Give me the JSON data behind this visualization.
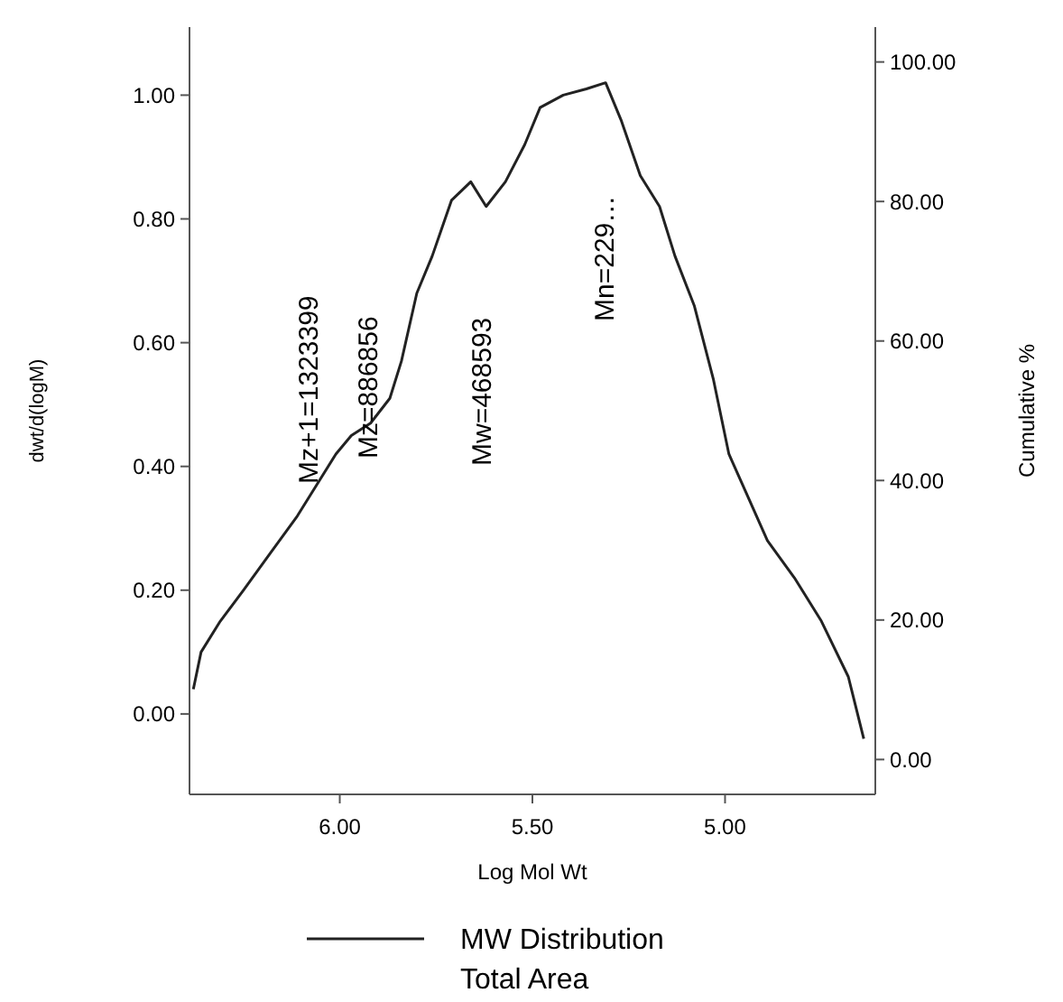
{
  "chart_data": {
    "type": "line",
    "xlabel": "Log Mol Wt",
    "ylabel": "dwt/d(logM)",
    "y2label": "Cumulative %",
    "x": [
      6.38,
      6.36,
      6.31,
      6.25,
      6.18,
      6.11,
      6.06,
      6.01,
      5.97,
      5.92,
      5.87,
      5.84,
      5.8,
      5.76,
      5.71,
      5.66,
      5.62,
      5.57,
      5.52,
      5.48,
      5.42,
      5.36,
      5.31,
      5.27,
      5.22,
      5.17,
      5.13,
      5.08,
      5.03,
      4.99,
      4.94,
      4.89,
      4.82,
      4.75,
      4.68,
      4.64
    ],
    "series": [
      {
        "name": "MW Distribution",
        "color": "#222222",
        "values": [
          0.04,
          0.1,
          0.15,
          0.2,
          0.26,
          0.32,
          0.37,
          0.42,
          0.45,
          0.47,
          0.51,
          0.57,
          0.68,
          0.74,
          0.83,
          0.86,
          0.82,
          0.86,
          0.92,
          0.98,
          1.0,
          1.01,
          1.02,
          0.96,
          0.87,
          0.82,
          0.74,
          0.66,
          0.54,
          0.42,
          0.35,
          0.28,
          0.22,
          0.15,
          0.06,
          -0.04
        ]
      }
    ],
    "xlim": [
      6.39,
      4.61
    ],
    "xticks": [
      {
        "value": 6,
        "label": "6.00"
      },
      {
        "value": 5.5,
        "label": "5.50"
      },
      {
        "value": 5,
        "label": "5.00"
      }
    ],
    "ylim": [
      -0.13,
      1.11
    ],
    "yticks": [
      {
        "value": 0,
        "label": "0.00"
      },
      {
        "value": 0.2,
        "label": "0.20"
      },
      {
        "value": 0.4,
        "label": "0.40"
      },
      {
        "value": 0.6,
        "label": "0.60"
      },
      {
        "value": 0.8,
        "label": "0.80"
      },
      {
        "value": 1,
        "label": "1.00"
      }
    ],
    "y2lim": [
      -5,
      105
    ],
    "y2ticks": [
      {
        "value": 0,
        "label": "0.00"
      },
      {
        "value": 20,
        "label": "20.00"
      },
      {
        "value": 40,
        "label": "40.00"
      },
      {
        "value": 60,
        "label": "60.00"
      },
      {
        "value": 80,
        "label": "80.00"
      },
      {
        "value": 100,
        "label": "100.00"
      }
    ],
    "annotations": [
      "Mz+1=1323399",
      "Mz=886856",
      "Mw=468593",
      "Mn=229…",
      "Total Area"
    ],
    "grid": false,
    "legend": "bottom",
    "marker": "none",
    "line_style": "solid"
  }
}
